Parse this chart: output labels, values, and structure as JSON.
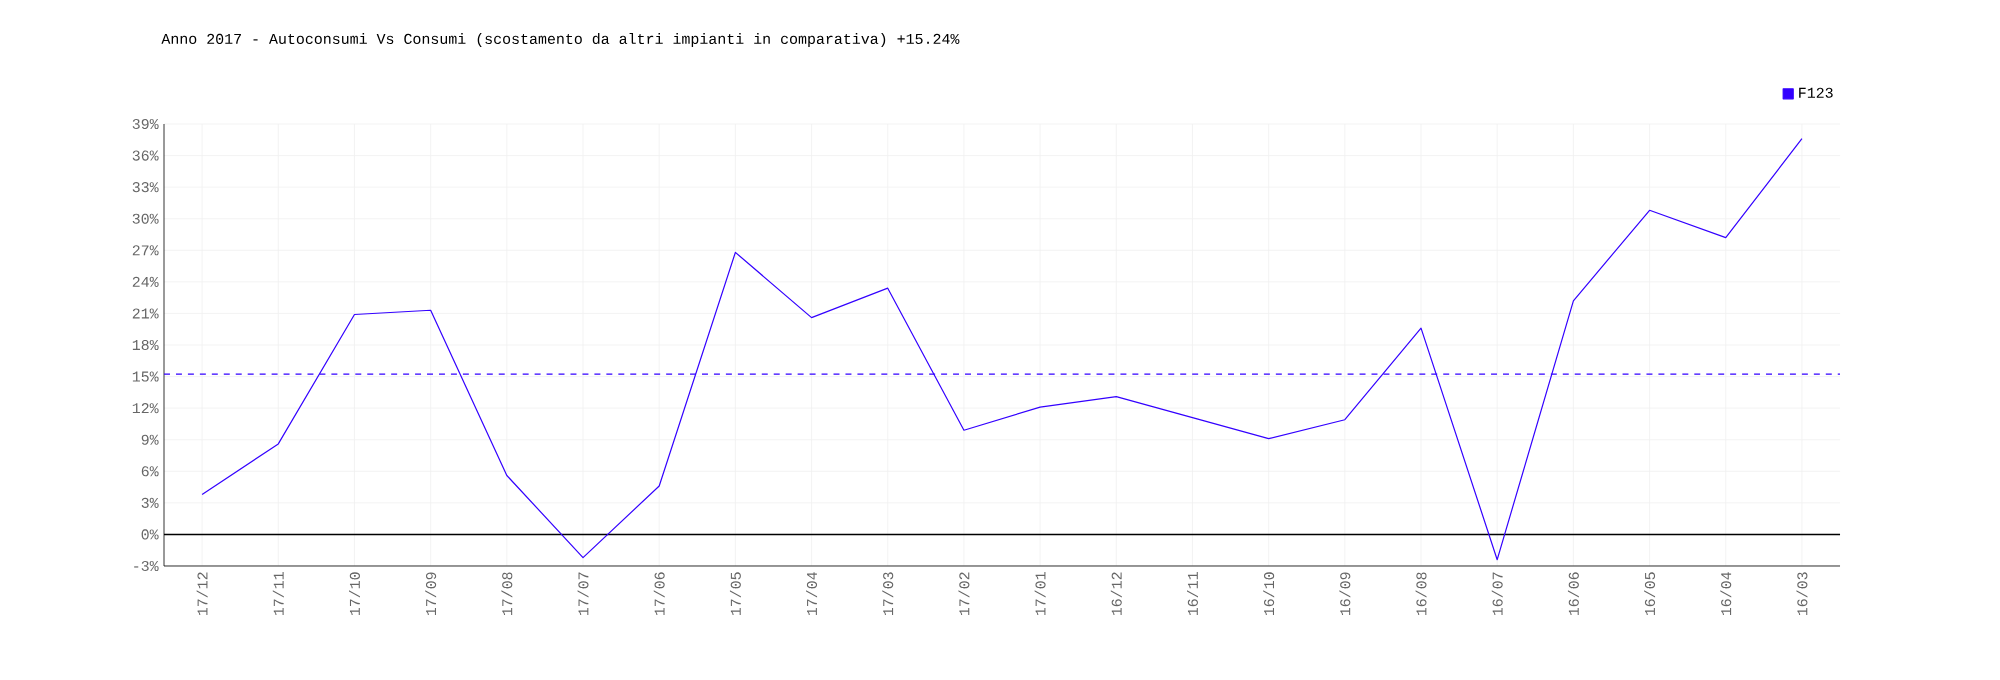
{
  "chart_data": {
    "type": "line",
    "title": "Anno 2017 - Autoconsumi Vs Consumi (scostamento da altri impianti in comparativa) +15.24%",
    "categories": [
      "17/12",
      "17/11",
      "17/10",
      "17/09",
      "17/08",
      "17/07",
      "17/06",
      "17/05",
      "17/04",
      "17/03",
      "17/02",
      "17/01",
      "16/12",
      "16/11",
      "16/10",
      "16/09",
      "16/08",
      "16/07",
      "16/06",
      "16/05",
      "16/04",
      "16/03"
    ],
    "series": [
      {
        "name": "F123",
        "color": "#3300ff",
        "values": [
          3.8,
          8.6,
          20.9,
          21.3,
          5.6,
          -2.2,
          4.6,
          26.8,
          20.6,
          23.4,
          9.9,
          12.1,
          13.1,
          11.1,
          9.1,
          10.9,
          19.6,
          -2.4,
          22.2,
          30.8,
          28.2,
          37.6
        ]
      }
    ],
    "ylim": [
      -3,
      39
    ],
    "yticks": [
      {
        "value": -3,
        "label": "-3%"
      },
      {
        "value": 0,
        "label": "0%"
      },
      {
        "value": 3,
        "label": "3%"
      },
      {
        "value": 6,
        "label": "6%"
      },
      {
        "value": 9,
        "label": "9%"
      },
      {
        "value": 12,
        "label": "12%"
      },
      {
        "value": 15,
        "label": "15%"
      },
      {
        "value": 18,
        "label": "18%"
      },
      {
        "value": 21,
        "label": "21%"
      },
      {
        "value": 24,
        "label": "24%"
      },
      {
        "value": 27,
        "label": "27%"
      },
      {
        "value": 30,
        "label": "30%"
      },
      {
        "value": 33,
        "label": "33%"
      },
      {
        "value": 36,
        "label": "36%"
      },
      {
        "value": 39,
        "label": "39%"
      }
    ],
    "ref_lines": [
      {
        "axis": "y",
        "value": 15.24,
        "color": "#3300ff",
        "line_style": "dashed"
      }
    ],
    "grid": true,
    "legend": "top right",
    "marker": "none",
    "line_style": "solid"
  }
}
